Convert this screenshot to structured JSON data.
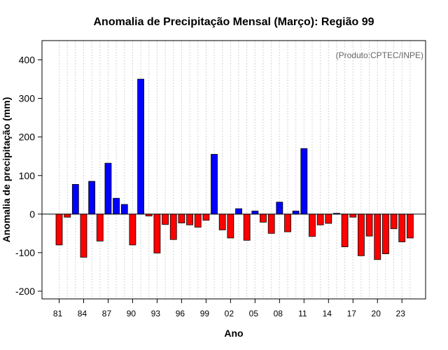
{
  "chart_data": {
    "type": "bar",
    "title": "Anomalia de Precipitação Mensal (Março): Região 99",
    "xlabel": "Ano",
    "ylabel": "Anomalia de precipitação (mm)",
    "annotation": "(Produto:CPTEC/INPE)",
    "ylim": [
      -220,
      450
    ],
    "yticks": [
      -200,
      -100,
      0,
      100,
      200,
      300,
      400
    ],
    "xticks": [
      "81",
      "84",
      "87",
      "90",
      "93",
      "96",
      "99",
      "02",
      "05",
      "08",
      "11",
      "14",
      "17",
      "20",
      "23"
    ],
    "years": [
      1981,
      1982,
      1983,
      1984,
      1985,
      1986,
      1987,
      1988,
      1989,
      1990,
      1991,
      1992,
      1993,
      1994,
      1995,
      1996,
      1997,
      1998,
      1999,
      2000,
      2001,
      2002,
      2003,
      2004,
      2005,
      2006,
      2007,
      2008,
      2009,
      2010,
      2011,
      2012,
      2013,
      2014,
      2015,
      2016,
      2017,
      2018,
      2019,
      2020,
      2021,
      2022,
      2023,
      2024
    ],
    "values": [
      -80,
      -8,
      77,
      -112,
      85,
      -70,
      132,
      41,
      25,
      -80,
      350,
      -5,
      -101,
      -27,
      -66,
      -23,
      -28,
      -34,
      -16,
      155,
      -41,
      -62,
      14,
      -68,
      8,
      -21,
      -50,
      31,
      -46,
      8,
      170,
      -58,
      -28,
      -24,
      2,
      -85,
      -8,
      -108,
      -57,
      -118,
      -103,
      -38,
      -72,
      -62
    ],
    "colors": {
      "positive": "#0000ff",
      "negative": "#ff0000",
      "axis": "#000000",
      "grid": "#d3d3d3"
    },
    "grid": true
  }
}
